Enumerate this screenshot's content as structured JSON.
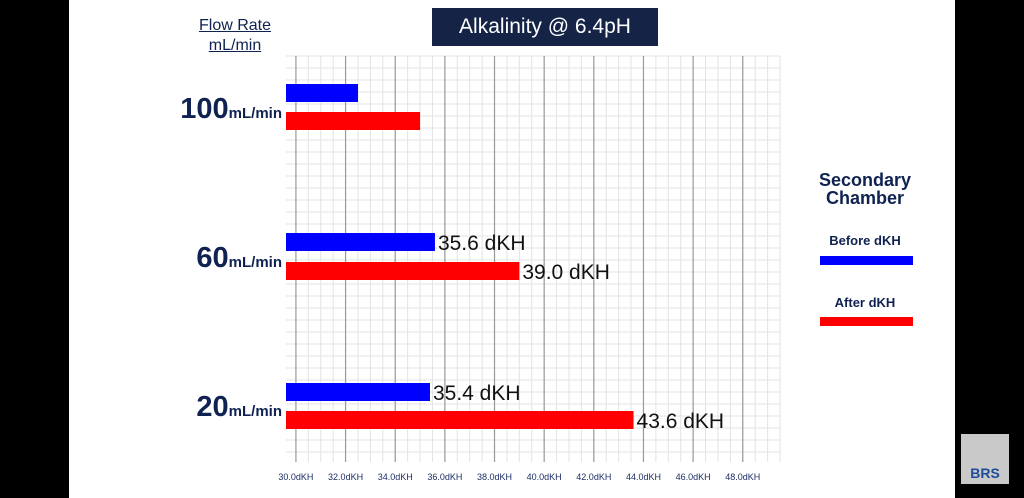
{
  "flow_header": {
    "line1": "Flow Rate",
    "line2": "mL/min"
  },
  "categories": [
    {
      "number": "100",
      "unit": "mL/min"
    },
    {
      "number": "60",
      "unit": "mL/min"
    },
    {
      "number": "20",
      "unit": "mL/min"
    }
  ],
  "legend": {
    "title_line1": "Secondary",
    "title_line2": "Chamber",
    "before_label": "Before dKH",
    "after_label": "After dKH"
  },
  "logo_text": "BRS",
  "colors": {
    "before": "#0000ff",
    "after": "#ff0000",
    "title_bg": "#142346",
    "navy_text": "#0f2251"
  },
  "chart_data": {
    "type": "bar",
    "orientation": "horizontal",
    "title": "Alkalinity @ 6.4pH",
    "categories": [
      "100mL/min",
      "60mL/min",
      "20mL/min"
    ],
    "series": [
      {
        "name": "Before dKH",
        "color": "#0000ff",
        "values": [
          32.5,
          35.6,
          35.4
        ],
        "labels": [
          "",
          "35.6 dKH",
          "35.4 dKH"
        ]
      },
      {
        "name": "After dKH",
        "color": "#ff0000",
        "values": [
          35.0,
          39.0,
          43.6
        ],
        "labels": [
          "",
          "39.0 dKH",
          "43.6 dKH"
        ]
      }
    ],
    "xlim": [
      29.6,
      49.5
    ],
    "xticks": [
      30,
      32,
      34,
      36,
      38,
      40,
      42,
      44,
      46,
      48
    ],
    "xtick_labels": [
      "30.0dKH",
      "32.0dKH",
      "34.0dKH",
      "36.0dKH",
      "38.0dKH",
      "40.0dKH",
      "42.0dKH",
      "44.0dKH",
      "46.0dKH",
      "48.0dKH"
    ],
    "grid": true,
    "legend_position": "right"
  }
}
